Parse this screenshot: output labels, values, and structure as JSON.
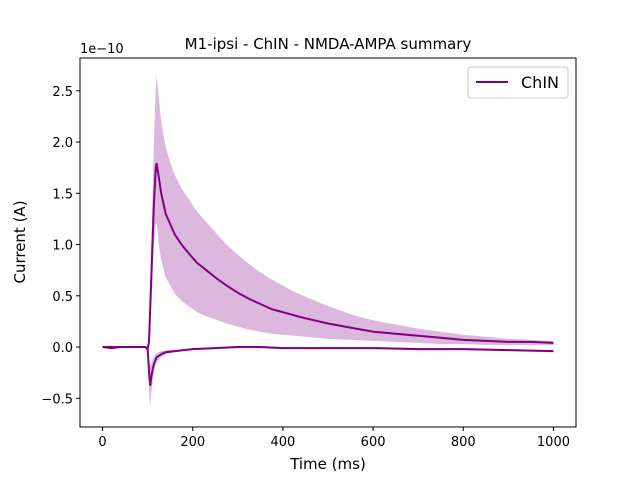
{
  "chart_data": {
    "type": "line",
    "title": "M1-ipsi - ChIN - NMDA-AMPA summary",
    "xlabel": "Time (ms)",
    "ylabel": "Current (A)",
    "y_offset_label": "1e−10",
    "xlim": [
      -50,
      1050
    ],
    "ylim": [
      -0.78,
      2.82
    ],
    "x_ticks": [
      0,
      200,
      400,
      600,
      800,
      1000
    ],
    "x_tick_labels": [
      "0",
      "200",
      "400",
      "600",
      "800",
      "1000"
    ],
    "y_ticks": [
      -0.5,
      0.0,
      0.5,
      1.0,
      1.5,
      2.0,
      2.5
    ],
    "y_tick_labels": [
      "−0.5",
      "0.0",
      "0.5",
      "1.0",
      "1.5",
      "2.0",
      "2.5"
    ],
    "grid": false,
    "legend_position": "top-right",
    "series": [
      {
        "name": "ChIN",
        "color": "#800080",
        "band_color": "#d8b0dc",
        "traces": [
          {
            "label": "upper",
            "x": [
              0,
              20,
              40,
              60,
              80,
              95,
              100,
              103,
              106,
              110,
              114,
              118,
              120,
              125,
              130,
              140,
              150,
              160,
              175,
              190,
              210,
              230,
              250,
              275,
              300,
              325,
              350,
              375,
              400,
              425,
              450,
              500,
              550,
              600,
              650,
              700,
              750,
              800,
              850,
              900,
              950,
              1000
            ],
            "y": [
              0.0,
              -0.01,
              0.0,
              0.0,
              0.0,
              0.0,
              -0.02,
              0.05,
              0.4,
              0.9,
              1.4,
              1.75,
              1.79,
              1.65,
              1.5,
              1.3,
              1.2,
              1.1,
              1.0,
              0.92,
              0.82,
              0.75,
              0.68,
              0.6,
              0.53,
              0.47,
              0.42,
              0.37,
              0.34,
              0.31,
              0.28,
              0.23,
              0.19,
              0.15,
              0.13,
              0.11,
              0.09,
              0.07,
              0.06,
              0.05,
              0.05,
              0.04
            ],
            "y_low": [
              0.0,
              -0.01,
              0.0,
              0.0,
              0.0,
              0.0,
              -0.02,
              0.02,
              0.25,
              0.6,
              1.0,
              1.2,
              1.2,
              1.0,
              0.85,
              0.68,
              0.6,
              0.52,
              0.45,
              0.4,
              0.34,
              0.3,
              0.27,
              0.23,
              0.2,
              0.17,
              0.15,
              0.13,
              0.12,
              0.11,
              0.1,
              0.08,
              0.07,
              0.06,
              0.05,
              0.04,
              0.03,
              0.03,
              0.02,
              0.02,
              0.02,
              0.02
            ],
            "y_high": [
              0.0,
              -0.01,
              0.0,
              0.0,
              0.0,
              0.0,
              -0.02,
              0.1,
              0.6,
              1.3,
              2.0,
              2.55,
              2.65,
              2.42,
              2.2,
              1.95,
              1.8,
              1.68,
              1.55,
              1.45,
              1.32,
              1.22,
              1.12,
              1.0,
              0.9,
              0.81,
              0.73,
              0.66,
              0.6,
              0.54,
              0.49,
              0.4,
              0.32,
              0.26,
              0.22,
              0.18,
              0.15,
              0.12,
              0.1,
              0.08,
              0.07,
              0.06
            ]
          },
          {
            "label": "lower",
            "x": [
              0,
              20,
              40,
              60,
              80,
              95,
              100,
              102,
              104,
              106,
              108,
              112,
              116,
              120,
              130,
              140,
              160,
              180,
              200,
              250,
              300,
              350,
              400,
              450,
              500,
              600,
              700,
              800,
              900,
              1000
            ],
            "y": [
              0.0,
              0.0,
              0.0,
              0.0,
              0.0,
              0.0,
              -0.02,
              -0.15,
              -0.3,
              -0.37,
              -0.3,
              -0.2,
              -0.14,
              -0.1,
              -0.07,
              -0.05,
              -0.04,
              -0.03,
              -0.02,
              -0.01,
              0.0,
              0.0,
              -0.01,
              -0.01,
              -0.01,
              -0.01,
              -0.02,
              -0.02,
              -0.03,
              -0.04
            ],
            "y_low": [
              0.0,
              0.0,
              0.0,
              0.0,
              0.0,
              0.0,
              -0.02,
              -0.3,
              -0.5,
              -0.58,
              -0.45,
              -0.3,
              -0.2,
              -0.14,
              -0.1,
              -0.07,
              -0.05,
              -0.04,
              -0.03,
              -0.02,
              -0.01,
              -0.01,
              -0.02,
              -0.02,
              -0.02,
              -0.02,
              -0.03,
              -0.03,
              -0.04,
              -0.05
            ],
            "y_high": [
              0.0,
              0.0,
              0.0,
              0.0,
              0.0,
              0.0,
              -0.02,
              -0.05,
              -0.15,
              -0.18,
              -0.17,
              -0.11,
              -0.08,
              -0.06,
              -0.04,
              -0.03,
              -0.03,
              -0.02,
              -0.01,
              0.0,
              0.01,
              0.01,
              0.0,
              0.0,
              0.0,
              0.0,
              -0.01,
              -0.01,
              -0.02,
              -0.03
            ]
          }
        ]
      }
    ]
  }
}
